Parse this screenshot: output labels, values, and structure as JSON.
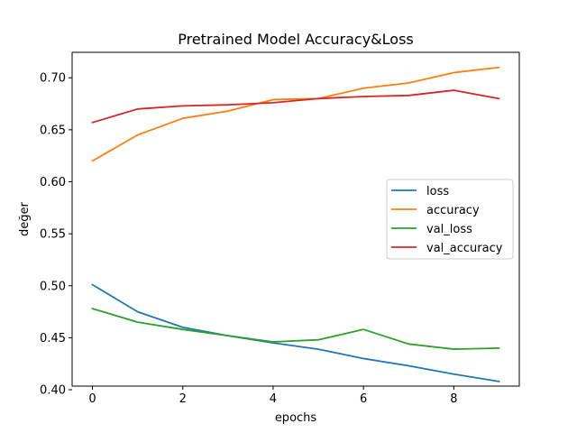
{
  "chart_data": {
    "type": "line",
    "title": "Pretrained Model Accuracy&Loss",
    "xlabel": "epochs",
    "ylabel": "değer",
    "x": [
      0,
      1,
      2,
      3,
      4,
      5,
      6,
      7,
      8,
      9
    ],
    "xlim": [
      -0.45,
      9.45
    ],
    "ylim": [
      0.4035,
      0.7245
    ],
    "xticks": [
      0,
      2,
      4,
      6,
      8
    ],
    "yticks": [
      0.4,
      0.45,
      0.5,
      0.55,
      0.6,
      0.65,
      0.7
    ],
    "ytick_labels": [
      "0.40",
      "0.45",
      "0.50",
      "0.55",
      "0.60",
      "0.65",
      "0.70"
    ],
    "grid": false,
    "legend": "center-right",
    "series": [
      {
        "name": "loss",
        "color": "#1f77b4",
        "values": [
          0.501,
          0.475,
          0.46,
          0.452,
          0.445,
          0.439,
          0.43,
          0.423,
          0.415,
          0.408
        ]
      },
      {
        "name": "accuracy",
        "color": "#ff7f0e",
        "values": [
          0.62,
          0.645,
          0.661,
          0.668,
          0.679,
          0.68,
          0.69,
          0.695,
          0.705,
          0.71
        ]
      },
      {
        "name": "val_loss",
        "color": "#2ca02c",
        "values": [
          0.478,
          0.465,
          0.458,
          0.452,
          0.446,
          0.448,
          0.458,
          0.444,
          0.439,
          0.44
        ]
      },
      {
        "name": "val_accuracy",
        "color": "#d62728",
        "values": [
          0.657,
          0.67,
          0.673,
          0.674,
          0.676,
          0.68,
          0.682,
          0.683,
          0.688,
          0.68
        ]
      }
    ]
  }
}
